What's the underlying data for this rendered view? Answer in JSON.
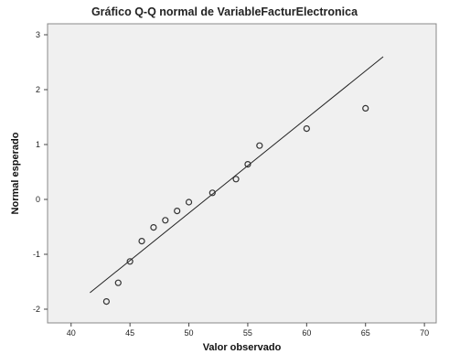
{
  "chart_data": {
    "type": "scatter",
    "title": "Gráfico Q-Q normal de VariableFacturElectronica",
    "xlabel": "Valor observado",
    "ylabel": "Normal esperado",
    "xlim": [
      38,
      71
    ],
    "ylim": [
      -2.25,
      3.2
    ],
    "xticks": [
      40,
      45,
      50,
      55,
      60,
      65,
      70
    ],
    "yticks": [
      -2,
      -1,
      0,
      1,
      2,
      3
    ],
    "grid": false,
    "plot_background": "#f0f0f0",
    "marker_color": "#333333",
    "reference_line": {
      "x": [
        41.6,
        66.5
      ],
      "y": [
        -1.7,
        2.6
      ]
    },
    "points": [
      {
        "x": 43,
        "y": -1.86
      },
      {
        "x": 44,
        "y": -1.52
      },
      {
        "x": 45,
        "y": -1.13
      },
      {
        "x": 46,
        "y": -0.76
      },
      {
        "x": 47,
        "y": -0.51
      },
      {
        "x": 48,
        "y": -0.38
      },
      {
        "x": 49,
        "y": -0.21
      },
      {
        "x": 50,
        "y": -0.05
      },
      {
        "x": 52,
        "y": 0.12
      },
      {
        "x": 54,
        "y": 0.37
      },
      {
        "x": 55,
        "y": 0.64
      },
      {
        "x": 56,
        "y": 0.98
      },
      {
        "x": 60,
        "y": 1.29
      },
      {
        "x": 65,
        "y": 1.66
      }
    ]
  }
}
